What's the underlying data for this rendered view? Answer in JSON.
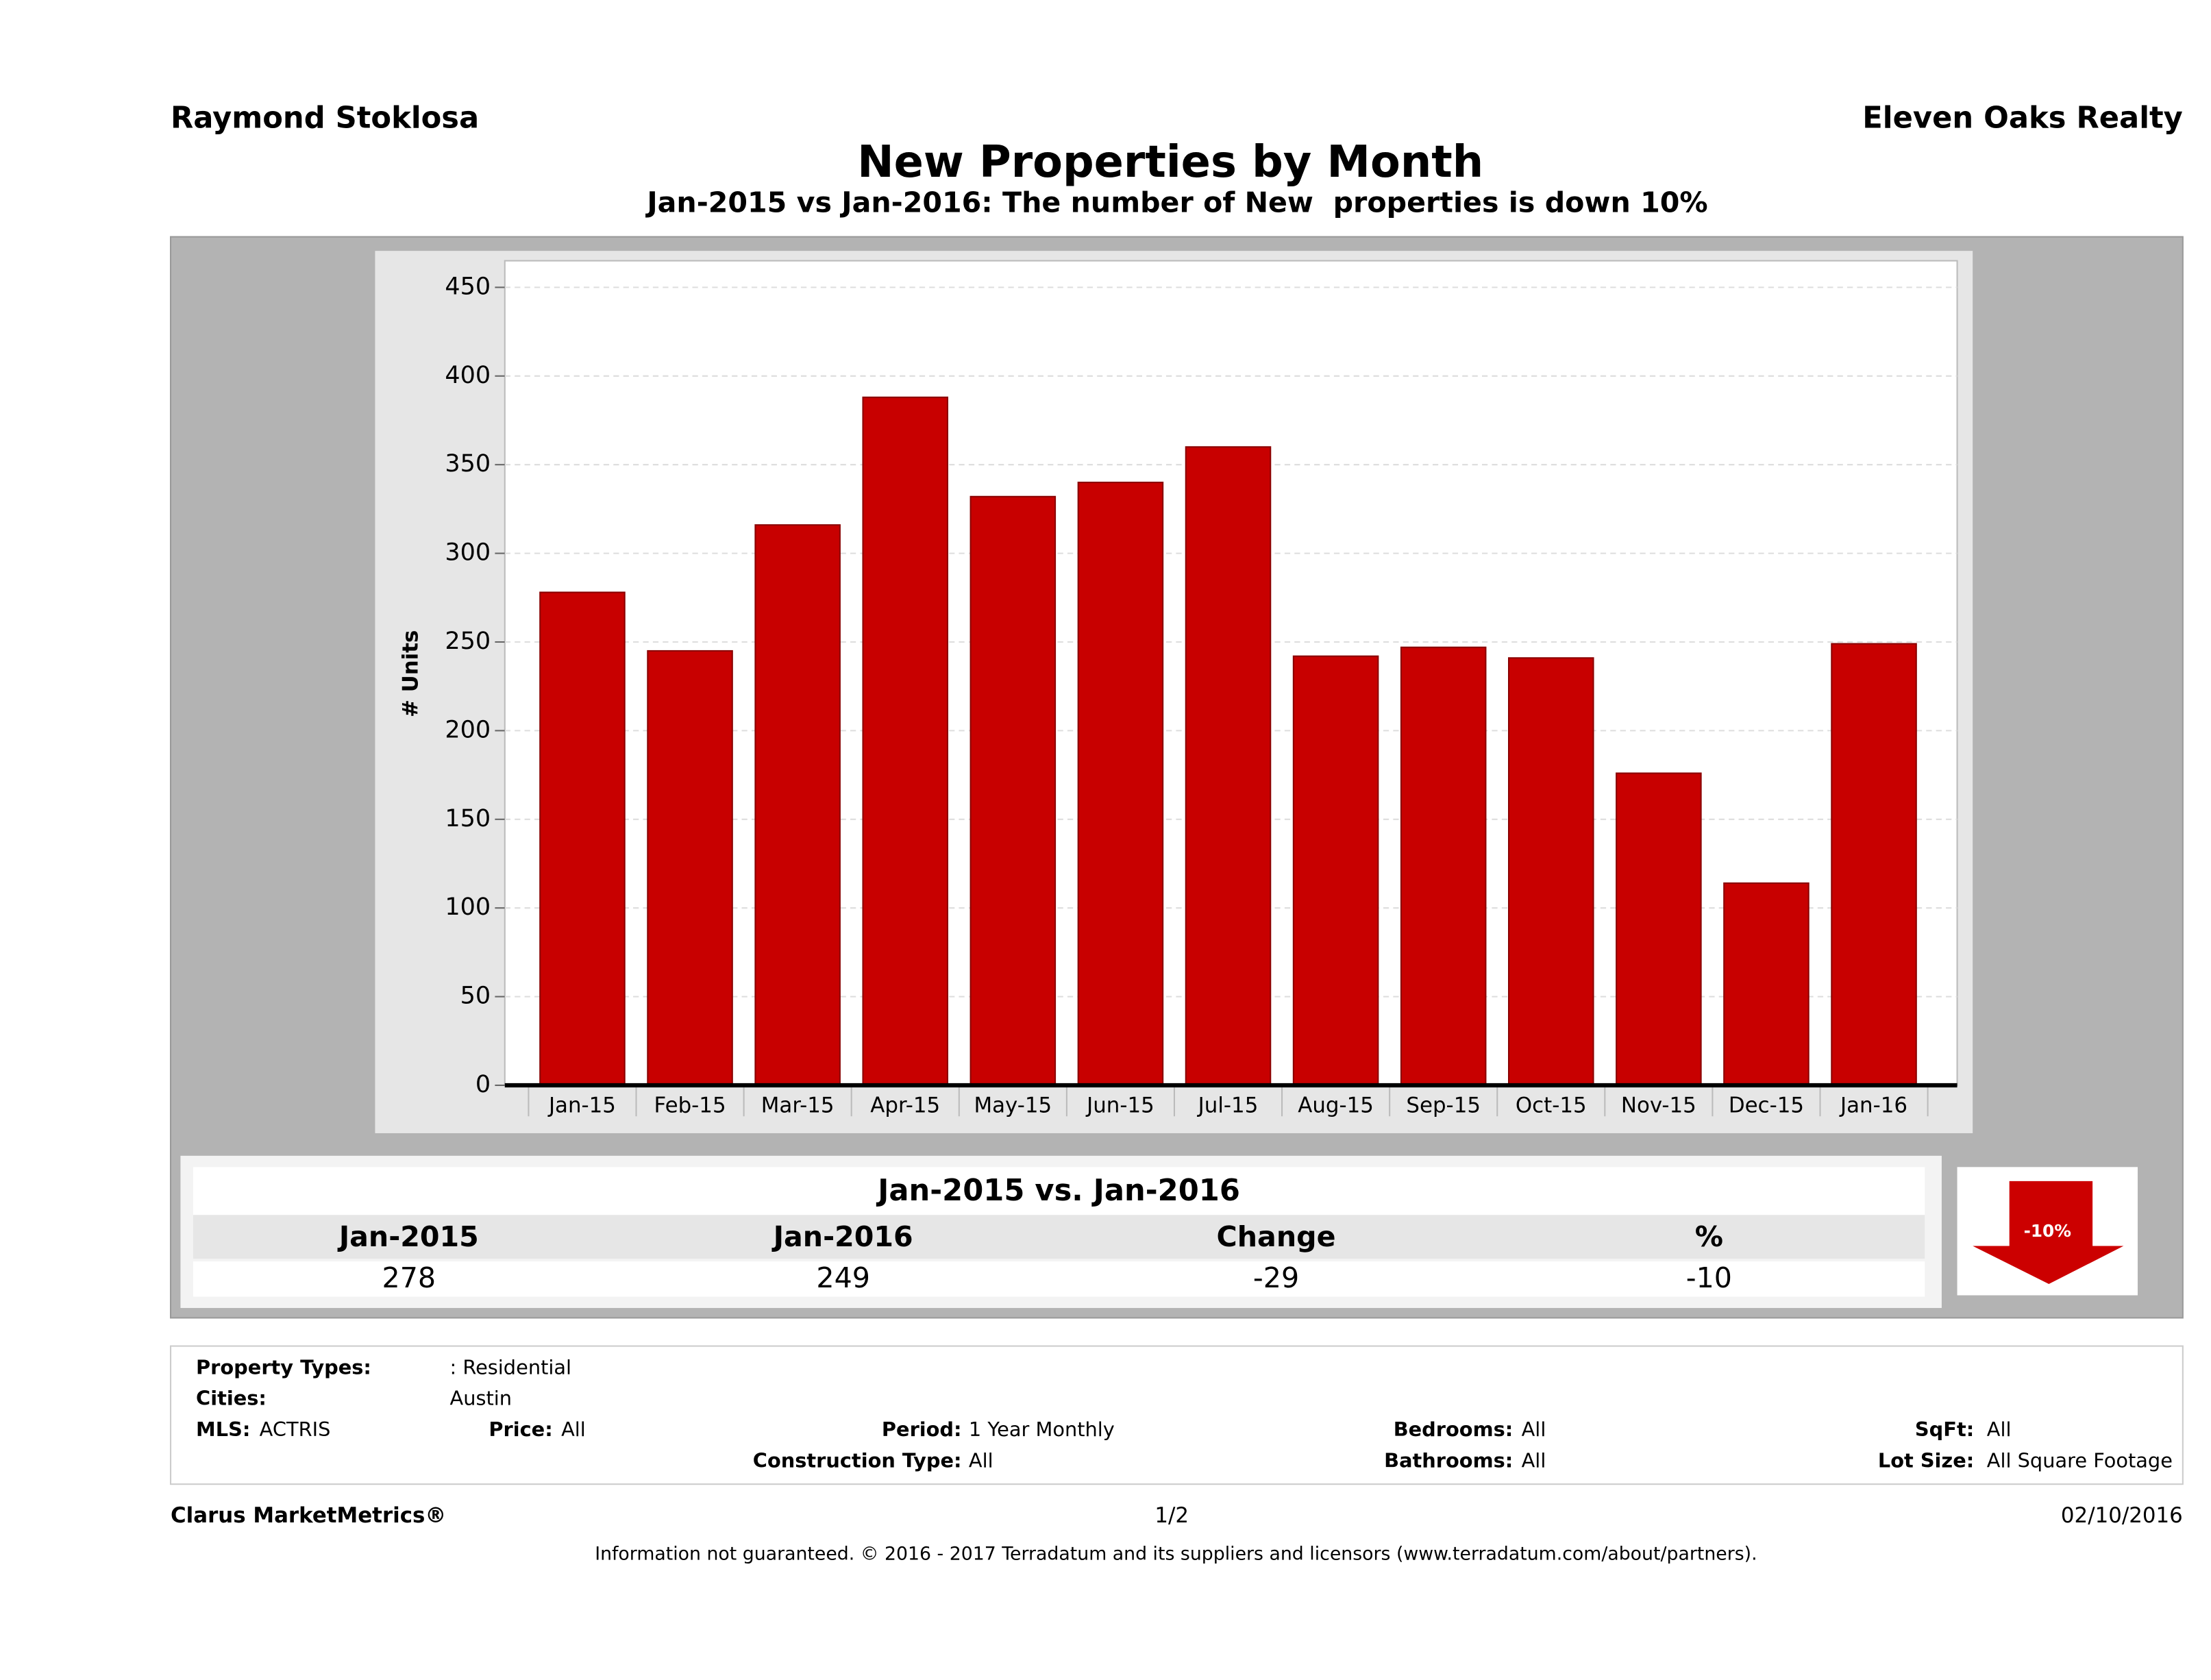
{
  "header": {
    "agent": "Raymond Stoklosa",
    "company": "Eleven Oaks Realty"
  },
  "chart_data": {
    "type": "bar",
    "title": "New Properties by Month",
    "subtitle": "Jan-2015 vs Jan-2016: The number of New  properties is down 10%",
    "y_label": "# Units",
    "categories": [
      "Jan-15",
      "Feb-15",
      "Mar-15",
      "Apr-15",
      "May-15",
      "Jun-15",
      "Jul-15",
      "Aug-15",
      "Sep-15",
      "Oct-15",
      "Nov-15",
      "Dec-15",
      "Jan-16"
    ],
    "values": [
      278,
      245,
      316,
      388,
      332,
      340,
      360,
      242,
      247,
      241,
      176,
      114,
      249
    ],
    "color": "#c80000",
    "ylim": [
      0,
      465
    ],
    "yticks": [
      0,
      50,
      100,
      150,
      200,
      250,
      300,
      350,
      400,
      450
    ],
    "grid": true
  },
  "summary": {
    "title": "Jan-2015 vs. Jan-2016",
    "headers": [
      "Jan-2015",
      "Jan-2016",
      "Change",
      "%"
    ],
    "values": [
      278,
      249,
      -29,
      -10
    ],
    "badge": "-10%"
  },
  "filters": [
    {
      "label": "Property Types:",
      "value": ": Residential"
    },
    {
      "label": "Cities:",
      "value": "Austin"
    },
    {
      "label": "MLS:",
      "value": "ACTRIS"
    },
    {
      "label": "Price:",
      "value": "All"
    },
    {
      "label": "Period:",
      "value": "1 Year Monthly"
    },
    {
      "label": "Bedrooms:",
      "value": "All"
    },
    {
      "label": "SqFt:",
      "value": "All"
    },
    {
      "label": "Construction Type:",
      "value": "All"
    },
    {
      "label": "Bathrooms:",
      "value": "All"
    },
    {
      "label": "Lot Size:",
      "value": "All Square Footage"
    }
  ],
  "footer": {
    "brand": "Clarus MarketMetrics®",
    "page": "1/2",
    "date": "02/10/2016",
    "disclaimer": "Information not guaranteed. © 2016 - 2017 Terradatum and its suppliers and licensors (www.terradatum.com/about/partners)."
  }
}
